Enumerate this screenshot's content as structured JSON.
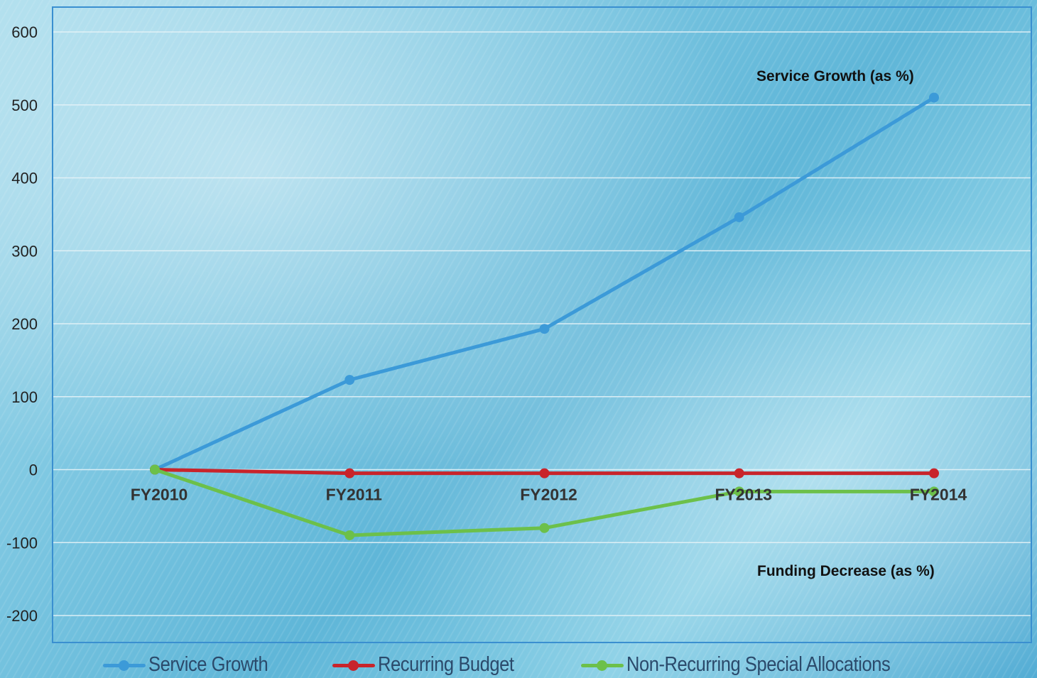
{
  "chart_data": {
    "type": "line",
    "categories": [
      "FY2010",
      "FY2011",
      "FY2012",
      "FY2013",
      "FY2014"
    ],
    "ylim": [
      -200,
      600
    ],
    "yticks": [
      600,
      500,
      400,
      300,
      200,
      100,
      0,
      -100,
      -200
    ],
    "grid": true,
    "legend_position": "bottom",
    "series": [
      {
        "name": "Service Growth",
        "color": "#3c9ad8",
        "values": [
          0,
          123,
          193,
          346,
          510
        ]
      },
      {
        "name": "Recurring Budget",
        "color": "#c8242b",
        "values": [
          0,
          -5,
          -5,
          -5,
          -5
        ]
      },
      {
        "name": "Non-Recurring Special Allocations",
        "color": "#6cc04a",
        "values": [
          0,
          -90,
          -80,
          -30,
          -30
        ]
      }
    ],
    "annotations": [
      {
        "text": "Service Growth (as %)"
      },
      {
        "text": "Funding Decrease (as %)"
      }
    ]
  },
  "colors": {
    "frame": "#3a8fd0",
    "grid": "#e6f3f8"
  }
}
